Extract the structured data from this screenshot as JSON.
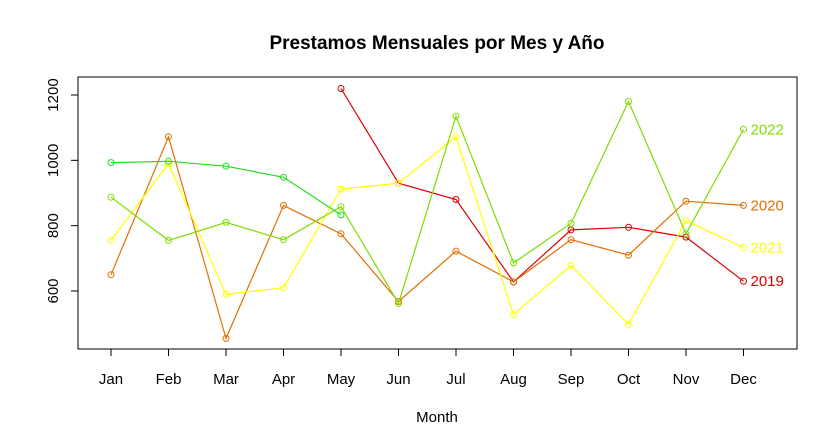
{
  "chart_data": {
    "type": "line",
    "title": "Prestamos Mensuales por Mes y Año",
    "xlabel": "Month",
    "ylabel": "",
    "categories": [
      "Jan",
      "Feb",
      "Mar",
      "Apr",
      "May",
      "Jun",
      "Jul",
      "Aug",
      "Sep",
      "Oct",
      "Nov",
      "Dec"
    ],
    "ylim": [
      425,
      1250
    ],
    "yticks": [
      600,
      800,
      1000,
      1200
    ],
    "grid": false,
    "legend": "end-of-line labels",
    "series": [
      {
        "name": "2019",
        "color": "#dd0000",
        "values": [
          null,
          null,
          null,
          null,
          1220,
          930,
          880,
          628,
          787,
          795,
          765,
          630
        ]
      },
      {
        "name": "2020",
        "color": "#e07000",
        "values": [
          650,
          1072,
          455,
          862,
          775,
          568,
          722,
          628,
          757,
          710,
          875,
          862
        ]
      },
      {
        "name": "2021",
        "color": "#ffff00",
        "values": [
          755,
          990,
          590,
          610,
          912,
          930,
          1072,
          528,
          678,
          498,
          815,
          733
        ]
      },
      {
        "name": "2022",
        "color": "#7fdd00",
        "values": [
          887,
          755,
          810,
          757,
          858,
          562,
          1135,
          686,
          807,
          1180,
          775,
          1095
        ]
      },
      {
        "name": "",
        "color": "#22dd22",
        "values": [
          993,
          997,
          982,
          948,
          833,
          null,
          null,
          null,
          null,
          null,
          null,
          null
        ]
      }
    ]
  }
}
